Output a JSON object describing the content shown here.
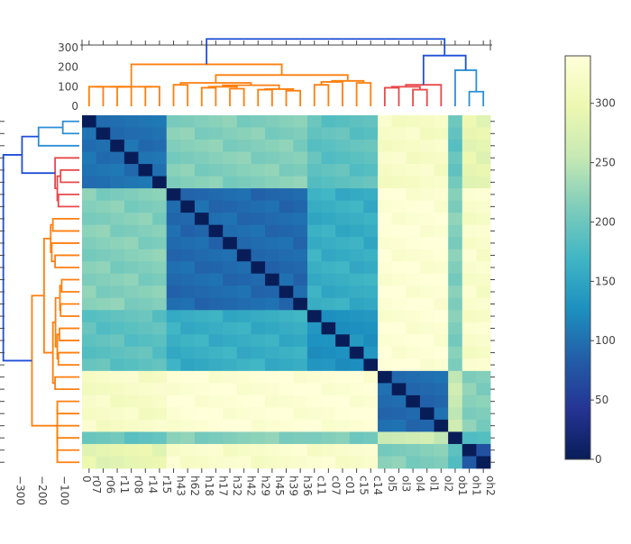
{
  "chart_data": {
    "type": "heatmap",
    "title": "",
    "labels": [
      "r07",
      "r06",
      "r11",
      "r08",
      "r14",
      "r15",
      "h43",
      "h62",
      "h18",
      "h17",
      "h32",
      "h42",
      "h29",
      "h45",
      "h39",
      "h36",
      "c11",
      "c07",
      "c01",
      "c15",
      "c14",
      "ol5",
      "ol3",
      "ol4",
      "ol1",
      "ol2",
      "ob1",
      "oh1",
      "oh2"
    ],
    "groups": {
      "r": {
        "count": 6,
        "start": 0,
        "color": "#1a3d9a"
      },
      "h": {
        "count": 10,
        "start": 6,
        "color": "#2656a8"
      },
      "c": {
        "count": 5,
        "start": 16,
        "color": "#2a7cb8"
      },
      "ol": {
        "count": 5,
        "start": 21,
        "color": "#1e4da2"
      },
      "ob": {
        "count": 1,
        "start": 26,
        "color": "#1b3f98"
      },
      "oh": {
        "count": 2,
        "start": 27,
        "color": "#2a56a6"
      }
    },
    "colorbar": {
      "min": 0,
      "max": 340,
      "ticks": [
        0,
        50,
        100,
        150,
        200,
        250,
        300
      ],
      "colorscale": [
        [
          0.0,
          "#081d58"
        ],
        [
          0.125,
          "#253494"
        ],
        [
          0.25,
          "#225ea8"
        ],
        [
          0.375,
          "#1d91c0"
        ],
        [
          0.5,
          "#41b6c4"
        ],
        [
          0.625,
          "#7fcdbb"
        ],
        [
          0.75,
          "#c7e9b4"
        ],
        [
          0.875,
          "#edf8b1"
        ],
        [
          1.0,
          "#ffffd9"
        ]
      ]
    },
    "top_dendrogram": {
      "yticks": [
        "300",
        "200",
        "100",
        "0"
      ],
      "ylim": [
        0,
        360
      ]
    },
    "left_dendrogram": {
      "xticks": [
        "−300",
        "−200",
        "−100",
        "0"
      ],
      "xlim": [
        -360,
        0
      ]
    },
    "dendrogram_colors": {
      "orange": "#ff7f0e",
      "red": "#e8494b",
      "blue": "#1f4fd8",
      "lightblue": "#2b8fd6"
    }
  }
}
